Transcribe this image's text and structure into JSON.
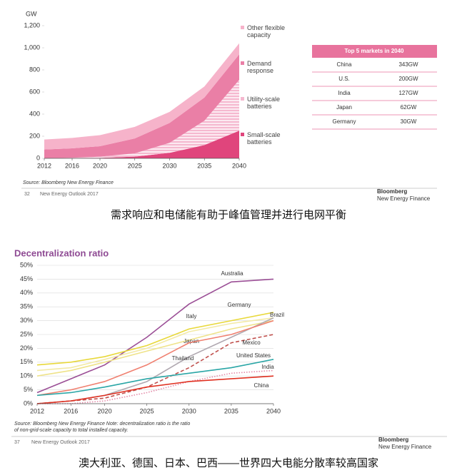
{
  "chart_data": [
    {
      "type": "area",
      "stacked": true,
      "y_unit": "GW",
      "x": [
        2012,
        2016,
        2020,
        2025,
        2030,
        2035,
        2040
      ],
      "xlim": [
        2012,
        2040
      ],
      "xticks": [
        2012,
        2016,
        2020,
        2025,
        2030,
        2035,
        2040
      ],
      "ylim": [
        0,
        1200
      ],
      "yticks": [
        0,
        200,
        400,
        600,
        800,
        {
          "value": 1000,
          "label": "1,000"
        },
        {
          "value": 1200,
          "label": "1,200"
        }
      ],
      "grid": false,
      "series": [
        {
          "name": "Small-scale batteries",
          "color": "#e0457c",
          "values": [
            0,
            2,
            5,
            15,
            50,
            120,
            250
          ]
        },
        {
          "name": "Utility-scale batteries",
          "color": "#f5b8cf",
          "pattern": "hatch",
          "values": [
            0,
            3,
            10,
            30,
            90,
            220,
            460
          ]
        },
        {
          "name": "Demand response",
          "color": "#ea7fa6",
          "values": [
            80,
            85,
            95,
            135,
            180,
            210,
            230
          ]
        },
        {
          "name": "Other flexible capacity",
          "color": "#f6b3ca",
          "values": [
            90,
            95,
            100,
            105,
            100,
            100,
            100
          ]
        }
      ],
      "source": "Source: Bloomberg New Energy Finance"
    },
    {
      "type": "line",
      "title": "Decentralization ratio",
      "x": [
        2012,
        2016,
        2020,
        2025,
        2030,
        2035,
        2040
      ],
      "xlim": [
        2012,
        2040
      ],
      "xticks": [
        2012,
        2016,
        2020,
        2025,
        2030,
        2035,
        2040
      ],
      "ylim": [
        0,
        50
      ],
      "yticks": [
        {
          "value": 0,
          "label": "0%"
        },
        {
          "value": 5,
          "label": "5%"
        },
        {
          "value": 10,
          "label": "10%"
        },
        {
          "value": 15,
          "label": "15%"
        },
        {
          "value": 20,
          "label": "20%"
        },
        {
          "value": 25,
          "label": "25%"
        },
        {
          "value": 30,
          "label": "30%"
        },
        {
          "value": 35,
          "label": "35%"
        },
        {
          "value": 40,
          "label": "40%"
        },
        {
          "value": 45,
          "label": "45%"
        },
        {
          "value": 50,
          "label": "50%"
        }
      ],
      "grid": true,
      "series": [
        {
          "name": "Australia",
          "color": "#9b4f96",
          "values": [
            4,
            9,
            14,
            24,
            36,
            44,
            45
          ]
        },
        {
          "name": "Germany",
          "color": "#e8d83a",
          "values": [
            14,
            15,
            17,
            21,
            27,
            30,
            33
          ]
        },
        {
          "name": "Italy",
          "color": "#efe38a",
          "values": [
            10,
            12,
            15,
            19,
            23,
            27,
            30
          ]
        },
        {
          "name": "Japan",
          "color": "#f3eaa6",
          "values": [
            12,
            13,
            16,
            20,
            26,
            29,
            31
          ]
        },
        {
          "name": "Brazil",
          "color": "#b0a8b0",
          "values": [
            0,
            1,
            3,
            8,
            17,
            24,
            31
          ]
        },
        {
          "name": "Thailand",
          "color": "#f08070",
          "values": [
            3,
            5,
            8,
            14,
            22,
            25,
            30
          ]
        },
        {
          "name": "Mexico",
          "color": "#c0504d",
          "dash": "dashed",
          "values": [
            0,
            1,
            2,
            6,
            13,
            22,
            25
          ]
        },
        {
          "name": "United States",
          "color": "#2aa6a6",
          "values": [
            3,
            4,
            6,
            9,
            11,
            13,
            16
          ]
        },
        {
          "name": "India",
          "color": "#e48aa8",
          "dash": "dotted",
          "values": [
            0,
            0,
            1,
            4,
            8,
            11,
            12
          ]
        },
        {
          "name": "China",
          "color": "#e03020",
          "values": [
            0,
            1,
            3,
            6,
            8,
            9,
            10
          ]
        }
      ],
      "source_lines": [
        "Source: Bloomberg New Energy Finance  Note: decentralization ratio is the ratio",
        "of non-grid-scale capacity to total installed capacity."
      ]
    }
  ],
  "table": {
    "title": "Top 5 markets in 2040",
    "rows": [
      [
        "China",
        "343GW"
      ],
      [
        "U.S.",
        "200GW"
      ],
      [
        "India",
        "127GW"
      ],
      [
        "Japan",
        "62GW"
      ],
      [
        "Germany",
        "30GW"
      ]
    ]
  },
  "footers": [
    {
      "page": "32",
      "text": "New Energy Outlook 2017",
      "logo": [
        "Bloomberg",
        "New Energy Finance"
      ]
    },
    {
      "page": "37",
      "text": "New Energy Outlook 2017",
      "logo": [
        "Bloomberg",
        "New Energy Finance"
      ]
    }
  ],
  "captions": [
    "需求响应和电储能有助于峰值管理并进行电网平衡",
    "澳大利亚、德国、日本、巴西——世界四大电能分散率较高国家"
  ]
}
